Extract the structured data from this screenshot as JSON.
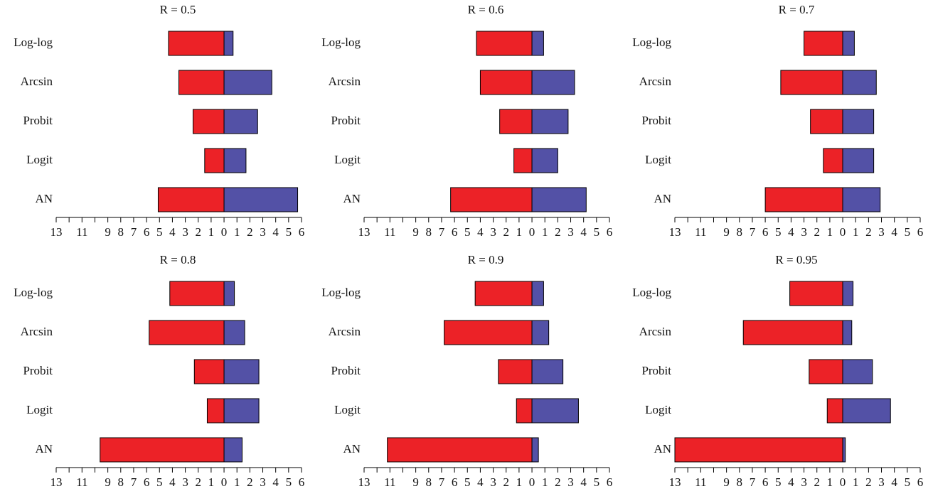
{
  "chart_data": [
    {
      "type": "bar",
      "title": "R = 0.5",
      "categories": [
        "Log-log",
        "Arcsin",
        "Probit",
        "Logit",
        "AN"
      ],
      "series": [
        {
          "color": "#ec2227",
          "values": [
            -4.3,
            -3.5,
            -2.4,
            -1.5,
            -5.1
          ]
        },
        {
          "color": "#5351a6",
          "values": [
            0.7,
            3.7,
            2.6,
            1.7,
            5.7
          ]
        }
      ],
      "xlim": [
        -13,
        6
      ],
      "xticks": [
        {
          "value": -13,
          "label": "13"
        },
        {
          "value": -12,
          "label": null
        },
        {
          "value": -11,
          "label": "11"
        },
        {
          "value": -10,
          "label": null
        },
        {
          "value": -9,
          "label": "9"
        },
        {
          "value": -8,
          "label": "8"
        },
        {
          "value": -7,
          "label": "7"
        },
        {
          "value": -6,
          "label": "6"
        },
        {
          "value": -5,
          "label": "5"
        },
        {
          "value": -4,
          "label": "4"
        },
        {
          "value": -3,
          "label": "3"
        },
        {
          "value": -2,
          "label": "2"
        },
        {
          "value": -1,
          "label": "1"
        },
        0,
        1,
        2,
        3,
        4,
        5,
        6
      ]
    },
    {
      "type": "bar",
      "title": "R = 0.6",
      "categories": [
        "Log-log",
        "Arcsin",
        "Probit",
        "Logit",
        "AN"
      ],
      "series": [
        {
          "color": "#ec2227",
          "values": [
            -4.3,
            -4.0,
            -2.5,
            -1.4,
            -6.3
          ]
        },
        {
          "color": "#5351a6",
          "values": [
            0.9,
            3.3,
            2.8,
            2.0,
            4.2
          ]
        }
      ],
      "xlim": [
        -13,
        6
      ],
      "xticks": [
        {
          "value": -13,
          "label": "13"
        },
        {
          "value": -12,
          "label": null
        },
        {
          "value": -11,
          "label": "11"
        },
        {
          "value": -10,
          "label": null
        },
        {
          "value": -9,
          "label": "9"
        },
        {
          "value": -8,
          "label": "8"
        },
        {
          "value": -7,
          "label": "7"
        },
        {
          "value": -6,
          "label": "6"
        },
        {
          "value": -5,
          "label": "5"
        },
        {
          "value": -4,
          "label": "4"
        },
        {
          "value": -3,
          "label": "3"
        },
        {
          "value": -2,
          "label": "2"
        },
        {
          "value": -1,
          "label": "1"
        },
        0,
        1,
        2,
        3,
        4,
        5,
        6
      ]
    },
    {
      "type": "bar",
      "title": "R = 0.7",
      "categories": [
        "Log-log",
        "Arcsin",
        "Probit",
        "Logit",
        "AN"
      ],
      "series": [
        {
          "color": "#ec2227",
          "values": [
            -3.0,
            -4.8,
            -2.5,
            -1.5,
            -6.0
          ]
        },
        {
          "color": "#5351a6",
          "values": [
            0.9,
            2.6,
            2.4,
            2.4,
            2.9
          ]
        }
      ],
      "xlim": [
        -13,
        6
      ],
      "xticks": [
        {
          "value": -13,
          "label": "13"
        },
        {
          "value": -12,
          "label": null
        },
        {
          "value": -11,
          "label": "11"
        },
        {
          "value": -10,
          "label": null
        },
        {
          "value": -9,
          "label": "9"
        },
        {
          "value": -8,
          "label": "8"
        },
        {
          "value": -7,
          "label": "7"
        },
        {
          "value": -6,
          "label": "6"
        },
        {
          "value": -5,
          "label": "5"
        },
        {
          "value": -4,
          "label": "4"
        },
        {
          "value": -3,
          "label": "3"
        },
        {
          "value": -2,
          "label": "2"
        },
        {
          "value": -1,
          "label": "1"
        },
        0,
        1,
        2,
        3,
        4,
        5,
        6
      ]
    },
    {
      "type": "bar",
      "title": "R = 0.8",
      "categories": [
        "Log-log",
        "Arcsin",
        "Probit",
        "Logit",
        "AN"
      ],
      "series": [
        {
          "color": "#ec2227",
          "values": [
            -4.2,
            -5.8,
            -2.3,
            -1.3,
            -9.6
          ]
        },
        {
          "color": "#5351a6",
          "values": [
            0.8,
            1.6,
            2.7,
            2.7,
            1.4
          ]
        }
      ],
      "xlim": [
        -13,
        6
      ],
      "xticks": [
        {
          "value": -13,
          "label": "13"
        },
        {
          "value": -12,
          "label": null
        },
        {
          "value": -11,
          "label": "11"
        },
        {
          "value": -10,
          "label": null
        },
        {
          "value": -9,
          "label": "9"
        },
        {
          "value": -8,
          "label": "8"
        },
        {
          "value": -7,
          "label": "7"
        },
        {
          "value": -6,
          "label": "6"
        },
        {
          "value": -5,
          "label": "5"
        },
        {
          "value": -4,
          "label": "4"
        },
        {
          "value": -3,
          "label": "3"
        },
        {
          "value": -2,
          "label": "2"
        },
        {
          "value": -1,
          "label": "1"
        },
        0,
        1,
        2,
        3,
        4,
        5,
        6
      ]
    },
    {
      "type": "bar",
      "title": "R = 0.9",
      "categories": [
        "Log-log",
        "Arcsin",
        "Probit",
        "Logit",
        "AN"
      ],
      "series": [
        {
          "color": "#ec2227",
          "values": [
            -4.4,
            -6.8,
            -2.6,
            -1.2,
            -11.2
          ]
        },
        {
          "color": "#5351a6",
          "values": [
            0.9,
            1.3,
            2.4,
            3.6,
            0.5
          ]
        }
      ],
      "xlim": [
        -13,
        6
      ],
      "xticks": [
        {
          "value": -13,
          "label": "13"
        },
        {
          "value": -12,
          "label": null
        },
        {
          "value": -11,
          "label": "11"
        },
        {
          "value": -10,
          "label": null
        },
        {
          "value": -9,
          "label": "9"
        },
        {
          "value": -8,
          "label": "8"
        },
        {
          "value": -7,
          "label": "7"
        },
        {
          "value": -6,
          "label": "6"
        },
        {
          "value": -5,
          "label": "5"
        },
        {
          "value": -4,
          "label": "4"
        },
        {
          "value": -3,
          "label": "3"
        },
        {
          "value": -2,
          "label": "2"
        },
        {
          "value": -1,
          "label": "1"
        },
        0,
        1,
        2,
        3,
        4,
        5,
        6
      ]
    },
    {
      "type": "bar",
      "title": "R = 0.95",
      "categories": [
        "Log-log",
        "Arcsin",
        "Probit",
        "Logit",
        "AN"
      ],
      "series": [
        {
          "color": "#ec2227",
          "values": [
            -4.1,
            -7.7,
            -2.6,
            -1.2,
            -13.0
          ]
        },
        {
          "color": "#5351a6",
          "values": [
            0.8,
            0.7,
            2.3,
            3.7,
            0.2
          ]
        }
      ],
      "xlim": [
        -13,
        6
      ],
      "xticks": [
        {
          "value": -13,
          "label": "13"
        },
        {
          "value": -12,
          "label": null
        },
        {
          "value": -11,
          "label": "11"
        },
        {
          "value": -10,
          "label": null
        },
        {
          "value": -9,
          "label": "9"
        },
        {
          "value": -8,
          "label": "8"
        },
        {
          "value": -7,
          "label": "7"
        },
        {
          "value": -6,
          "label": "6"
        },
        {
          "value": -5,
          "label": "5"
        },
        {
          "value": -4,
          "label": "4"
        },
        {
          "value": -3,
          "label": "3"
        },
        {
          "value": -2,
          "label": "2"
        },
        {
          "value": -1,
          "label": "1"
        },
        0,
        1,
        2,
        3,
        4,
        5,
        6
      ]
    }
  ]
}
